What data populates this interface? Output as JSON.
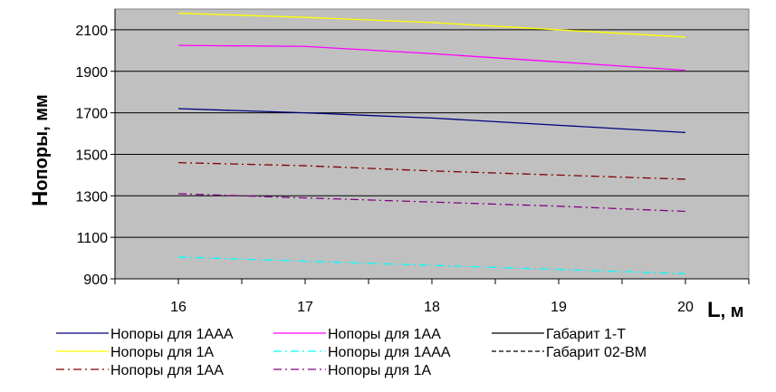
{
  "chart_data": {
    "type": "line",
    "x": [
      16,
      17,
      18,
      19,
      20
    ],
    "xlim": [
      15.5,
      20.5
    ],
    "ylim": [
      900,
      2200
    ],
    "yticks": [
      900,
      1100,
      1300,
      1500,
      1700,
      1900,
      2100
    ],
    "xticks": [
      16,
      17,
      18,
      19,
      20
    ],
    "ylabel": {
      "main": "H",
      "sub": "опоры, мм"
    },
    "xlabel": {
      "main": "L",
      "sub": ", м"
    },
    "grid": "horizontal",
    "background": "#c0c0c0",
    "series": [
      {
        "name": "Нопоры для 1ААА",
        "color": "#000080",
        "style": "solid",
        "values": [
          1720,
          1700,
          1675,
          1640,
          1605
        ]
      },
      {
        "name": "Нопоры для 1АА",
        "color": "#ff00ff",
        "style": "solid",
        "values": [
          2025,
          2020,
          1985,
          1945,
          1905
        ]
      },
      {
        "name": "Нопоры для 1А",
        "color": "#ffff00",
        "style": "solid",
        "values": [
          2180,
          2160,
          2135,
          2100,
          2065
        ]
      },
      {
        "name": "Нопоры для 1ААА",
        "color": "#00ffff",
        "style": "dashdot",
        "values": [
          1005,
          985,
          965,
          945,
          925
        ]
      },
      {
        "name": "Нопоры для 1АА",
        "color": "#800000",
        "style": "dashdot",
        "values": [
          1460,
          1445,
          1420,
          1400,
          1380
        ]
      },
      {
        "name": "Нопоры для 1А",
        "color": "#800080",
        "style": "dashdot",
        "values": [
          1310,
          1290,
          1270,
          1250,
          1225
        ]
      }
    ],
    "legend": {
      "placement": "bottom",
      "items": [
        {
          "label": "Нопоры для 1ААА",
          "color": "#000080",
          "style": "solid"
        },
        {
          "label": "Нопоры для 1АА",
          "color": "#ff00ff",
          "style": "solid"
        },
        {
          "label": "Габарит 1-Т",
          "color": "#000000",
          "style": "solid"
        },
        {
          "label": "Нопоры для 1А",
          "color": "#ffff00",
          "style": "solid"
        },
        {
          "label": "Нопоры для 1ААА",
          "color": "#00ffff",
          "style": "dashdot"
        },
        {
          "label": "Габарит 02-ВМ",
          "color": "#000000",
          "style": "dashed"
        },
        {
          "label": "Нопоры для 1АА",
          "color": "#800000",
          "style": "dashdot"
        },
        {
          "label": "Нопоры для 1А",
          "color": "#800080",
          "style": "dashdot"
        }
      ]
    }
  }
}
